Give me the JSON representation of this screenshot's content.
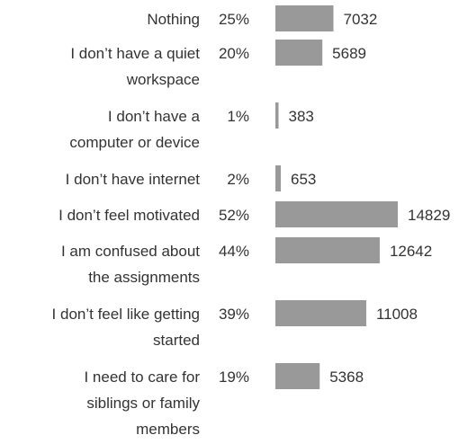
{
  "chart_data": {
    "type": "bar",
    "orientation": "horizontal",
    "categories": [
      "Nothing",
      "I don’t have a quiet workspace",
      "I don’t have a computer or device",
      "I don’t have internet",
      "I don’t feel motivated",
      "I am confused about the assignments",
      "I don’t feel like getting started",
      "I need to care for siblings or family members"
    ],
    "category_lines": [
      [
        "Nothing"
      ],
      [
        "I don’t have a quiet",
        "workspace"
      ],
      [
        "I don’t have a",
        "computer or device"
      ],
      [
        "I don’t have internet"
      ],
      [
        "I don’t feel motivated"
      ],
      [
        "I am confused about",
        "the assignments"
      ],
      [
        "I don’t feel like getting",
        "started"
      ],
      [
        "I need to care for",
        "siblings or family",
        "members"
      ]
    ],
    "percent_labels": [
      "25%",
      "20%",
      "1%",
      "2%",
      "52%",
      "44%",
      "39%",
      "19%"
    ],
    "values": [
      7032,
      5689,
      383,
      653,
      14829,
      12642,
      11008,
      5368
    ],
    "xlim": [
      0,
      14829
    ],
    "grid": false,
    "legend": "none",
    "bar_color": "#999999"
  }
}
